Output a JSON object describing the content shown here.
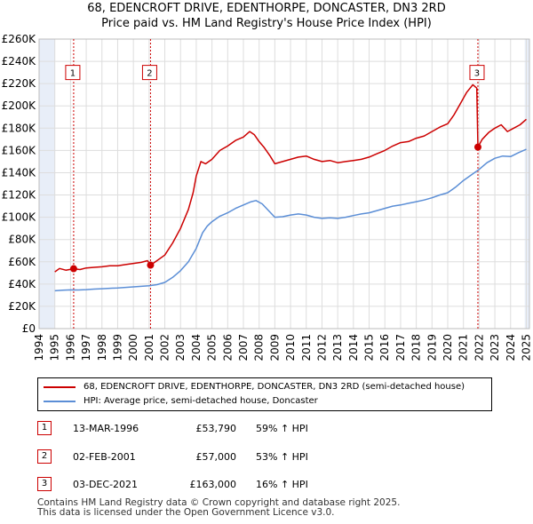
{
  "title_line1": "68, EDENCROFT DRIVE, EDENTHORPE, DONCASTER, DN3 2RD",
  "title_line2": "Price paid vs. HM Land Registry's House Price Index (HPI)",
  "colors": {
    "property": "#cc0000",
    "hpi": "#5b8ed6",
    "grid": "#dddddd",
    "shade": "#e8eef8",
    "marker": "#cc0000"
  },
  "chart_data": {
    "type": "line",
    "xlim": [
      1994,
      2025.2
    ],
    "ylim": [
      0,
      260000
    ],
    "y_ticks": [
      0,
      20000,
      40000,
      60000,
      80000,
      100000,
      120000,
      140000,
      160000,
      180000,
      200000,
      220000,
      240000,
      260000
    ],
    "y_tick_labels": [
      "£0",
      "£20K",
      "£40K",
      "£60K",
      "£80K",
      "£100K",
      "£120K",
      "£140K",
      "£160K",
      "£180K",
      "£200K",
      "£220K",
      "£240K",
      "£260K"
    ],
    "x_ticks": [
      1994,
      1995,
      1996,
      1997,
      1998,
      1999,
      2000,
      2001,
      2002,
      2003,
      2004,
      2005,
      2006,
      2007,
      2008,
      2009,
      2010,
      2011,
      2012,
      2013,
      2014,
      2015,
      2016,
      2017,
      2018,
      2019,
      2020,
      2021,
      2022,
      2023,
      2024,
      2025
    ],
    "x_tick_labels": [
      "1994",
      "1995",
      "1996",
      "1997",
      "1998",
      "1999",
      "2000",
      "2001",
      "2002",
      "2003",
      "2004",
      "2005",
      "2006",
      "2007",
      "2008",
      "2009",
      "2010",
      "2011",
      "2012",
      "2013",
      "2014",
      "2015",
      "2016",
      "2017",
      "2018",
      "2019",
      "2020",
      "2021",
      "2022",
      "2023",
      "2024",
      "2025"
    ],
    "shaded_ranges": [
      [
        1994,
        1995.0
      ],
      [
        2024.9,
        2025.2
      ]
    ],
    "series": [
      {
        "name": "68, EDENCROFT DRIVE, EDENTHORPE, DONCASTER, DN3 2RD (semi-detached house)",
        "points": [
          [
            1995.0,
            51000
          ],
          [
            1995.3,
            54000
          ],
          [
            1995.7,
            52500
          ],
          [
            1996.2,
            53790
          ],
          [
            1996.6,
            53000
          ],
          [
            1997.0,
            54500
          ],
          [
            1997.5,
            55000
          ],
          [
            1998.0,
            55500
          ],
          [
            1998.5,
            56500
          ],
          [
            1999.0,
            56500
          ],
          [
            1999.5,
            57500
          ],
          [
            2000.0,
            58500
          ],
          [
            2000.5,
            59500
          ],
          [
            2000.9,
            61000
          ],
          [
            2001.09,
            57000
          ],
          [
            2001.5,
            61000
          ],
          [
            2002.0,
            66000
          ],
          [
            2002.5,
            77000
          ],
          [
            2003.0,
            90000
          ],
          [
            2003.5,
            107000
          ],
          [
            2003.8,
            122000
          ],
          [
            2004.0,
            137000
          ],
          [
            2004.3,
            150000
          ],
          [
            2004.6,
            148000
          ],
          [
            2005.0,
            152000
          ],
          [
            2005.5,
            160000
          ],
          [
            2006.0,
            164000
          ],
          [
            2006.5,
            169000
          ],
          [
            2007.0,
            172000
          ],
          [
            2007.4,
            177000
          ],
          [
            2007.7,
            174000
          ],
          [
            2008.0,
            168000
          ],
          [
            2008.3,
            163000
          ],
          [
            2008.7,
            155000
          ],
          [
            2009.0,
            148000
          ],
          [
            2009.5,
            150000
          ],
          [
            2010.0,
            152000
          ],
          [
            2010.5,
            154000
          ],
          [
            2011.0,
            155000
          ],
          [
            2011.5,
            152000
          ],
          [
            2012.0,
            150000
          ],
          [
            2012.5,
            151000
          ],
          [
            2013.0,
            149000
          ],
          [
            2013.5,
            150000
          ],
          [
            2014.0,
            151000
          ],
          [
            2014.5,
            152000
          ],
          [
            2015.0,
            154000
          ],
          [
            2015.5,
            157000
          ],
          [
            2016.0,
            160000
          ],
          [
            2016.5,
            164000
          ],
          [
            2017.0,
            167000
          ],
          [
            2017.5,
            168000
          ],
          [
            2018.0,
            171000
          ],
          [
            2018.5,
            173000
          ],
          [
            2019.0,
            177000
          ],
          [
            2019.5,
            181000
          ],
          [
            2020.0,
            184000
          ],
          [
            2020.4,
            192000
          ],
          [
            2020.8,
            202000
          ],
          [
            2021.2,
            212000
          ],
          [
            2021.6,
            219000
          ],
          [
            2021.85,
            216000
          ],
          [
            2021.92,
            163000
          ],
          [
            2022.2,
            170000
          ],
          [
            2022.6,
            176000
          ],
          [
            2023.0,
            180000
          ],
          [
            2023.4,
            183000
          ],
          [
            2023.8,
            177000
          ],
          [
            2024.2,
            180000
          ],
          [
            2024.6,
            183000
          ],
          [
            2025.0,
            188000
          ]
        ]
      },
      {
        "name": "HPI: Average price, semi-detached house, Doncaster",
        "points": [
          [
            1995.0,
            34000
          ],
          [
            1995.5,
            34500
          ],
          [
            1996.0,
            34800
          ],
          [
            1996.5,
            34700
          ],
          [
            1997.0,
            35000
          ],
          [
            1997.5,
            35500
          ],
          [
            1998.0,
            35800
          ],
          [
            1998.5,
            36200
          ],
          [
            1999.0,
            36500
          ],
          [
            1999.5,
            37000
          ],
          [
            2000.0,
            37500
          ],
          [
            2000.5,
            38000
          ],
          [
            2001.0,
            38500
          ],
          [
            2001.5,
            39500
          ],
          [
            2002.0,
            41500
          ],
          [
            2002.5,
            46000
          ],
          [
            2003.0,
            52000
          ],
          [
            2003.5,
            60000
          ],
          [
            2004.0,
            72000
          ],
          [
            2004.4,
            86000
          ],
          [
            2004.7,
            92000
          ],
          [
            2005.0,
            96000
          ],
          [
            2005.5,
            101000
          ],
          [
            2006.0,
            104000
          ],
          [
            2006.5,
            108000
          ],
          [
            2007.0,
            111000
          ],
          [
            2007.5,
            114000
          ],
          [
            2007.8,
            115000
          ],
          [
            2008.2,
            112000
          ],
          [
            2008.6,
            106000
          ],
          [
            2009.0,
            100000
          ],
          [
            2009.5,
            100500
          ],
          [
            2010.0,
            102000
          ],
          [
            2010.5,
            103000
          ],
          [
            2011.0,
            102000
          ],
          [
            2011.5,
            100000
          ],
          [
            2012.0,
            99000
          ],
          [
            2012.5,
            99500
          ],
          [
            2013.0,
            99000
          ],
          [
            2013.5,
            100000
          ],
          [
            2014.0,
            101500
          ],
          [
            2014.5,
            103000
          ],
          [
            2015.0,
            104000
          ],
          [
            2015.5,
            106000
          ],
          [
            2016.0,
            108000
          ],
          [
            2016.5,
            110000
          ],
          [
            2017.0,
            111000
          ],
          [
            2017.5,
            112500
          ],
          [
            2018.0,
            114000
          ],
          [
            2018.5,
            115500
          ],
          [
            2019.0,
            117500
          ],
          [
            2019.5,
            120000
          ],
          [
            2020.0,
            122000
          ],
          [
            2020.5,
            127000
          ],
          [
            2021.0,
            133000
          ],
          [
            2021.5,
            138000
          ],
          [
            2022.0,
            143000
          ],
          [
            2022.5,
            149000
          ],
          [
            2023.0,
            153000
          ],
          [
            2023.5,
            155000
          ],
          [
            2024.0,
            154500
          ],
          [
            2024.5,
            158000
          ],
          [
            2025.0,
            161000
          ]
        ]
      }
    ],
    "sale_markers": [
      {
        "label": "1",
        "x": 1996.2,
        "y": 53790
      },
      {
        "label": "2",
        "x": 2001.09,
        "y": 57000
      },
      {
        "label": "3",
        "x": 2021.92,
        "y": 163000
      }
    ],
    "marker_box_y": 230000
  },
  "legend": {
    "property_label": "68, EDENCROFT DRIVE, EDENTHORPE, DONCASTER, DN3 2RD (semi-detached house)",
    "hpi_label": "HPI: Average price, semi-detached house, Doncaster"
  },
  "transactions": [
    {
      "num": "1",
      "date": "13-MAR-1996",
      "price": "£53,790",
      "hpi": "59% ↑ HPI"
    },
    {
      "num": "2",
      "date": "02-FEB-2001",
      "price": "£57,000",
      "hpi": "53% ↑ HPI"
    },
    {
      "num": "3",
      "date": "03-DEC-2021",
      "price": "£163,000",
      "hpi": "16% ↑ HPI"
    }
  ],
  "footer": {
    "line1": "Contains HM Land Registry data © Crown copyright and database right 2025.",
    "line2": "This data is licensed under the Open Government Licence v3.0."
  }
}
